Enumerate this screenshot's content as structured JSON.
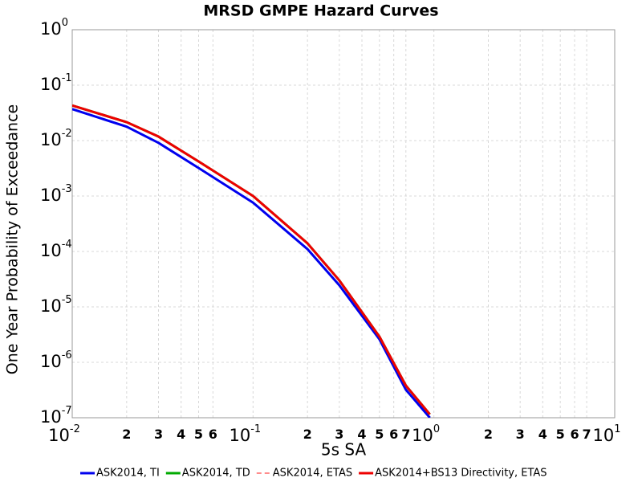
{
  "chart_data": {
    "type": "line",
    "title": "MRSD GMPE Hazard Curves",
    "x_label": "5s SA",
    "y_label": "One Year Probability of Exceedance",
    "x_scale": "log",
    "y_scale": "log",
    "grid": true,
    "xlim": [
      0.01,
      10
    ],
    "ylim": [
      1e-07,
      1
    ],
    "xticks": [
      {
        "value": 0.01,
        "label": "10",
        "exponent": "-2"
      },
      {
        "value": 0.02,
        "label": "2"
      },
      {
        "value": 0.03,
        "label": "3"
      },
      {
        "value": 0.04,
        "label": "4"
      },
      {
        "value": 0.05,
        "label": "5"
      },
      {
        "value": 0.06,
        "label": "6"
      },
      {
        "value": 0.1,
        "label": "10",
        "exponent": "-1"
      },
      {
        "value": 0.2,
        "label": "2"
      },
      {
        "value": 0.3,
        "label": "3"
      },
      {
        "value": 0.4,
        "label": "4"
      },
      {
        "value": 0.5,
        "label": "5"
      },
      {
        "value": 0.6,
        "label": "6"
      },
      {
        "value": 0.7,
        "label": "7"
      },
      {
        "value": 1,
        "label": "10",
        "exponent": "0"
      },
      {
        "value": 2,
        "label": "2"
      },
      {
        "value": 3,
        "label": "3"
      },
      {
        "value": 4,
        "label": "4"
      },
      {
        "value": 5,
        "label": "5"
      },
      {
        "value": 6,
        "label": "6"
      },
      {
        "value": 7,
        "label": "7"
      },
      {
        "value": 10,
        "label": "10",
        "exponent": "1"
      }
    ],
    "yticks": [
      {
        "value": 1e-07,
        "label": "10",
        "exponent": "-7"
      },
      {
        "value": 1e-06,
        "label": "10",
        "exponent": "-6"
      },
      {
        "value": 1e-05,
        "label": "10",
        "exponent": "-5"
      },
      {
        "value": 0.0001,
        "label": "10",
        "exponent": "-4"
      },
      {
        "value": 0.001,
        "label": "10",
        "exponent": "-3"
      },
      {
        "value": 0.01,
        "label": "10",
        "exponent": "-2"
      },
      {
        "value": 0.1,
        "label": "10",
        "exponent": "-1"
      },
      {
        "value": 1,
        "label": "10",
        "exponent": "0"
      }
    ],
    "x": [
      0.01,
      0.02,
      0.03,
      0.05,
      0.1,
      0.2,
      0.3,
      0.5,
      0.7,
      0.95
    ],
    "series": [
      {
        "name": "ASK2014, TI",
        "color": "#0000ee",
        "dash": false,
        "values": [
          0.037,
          0.0178,
          0.0091,
          0.0032,
          0.00076,
          0.00011,
          2.45e-05,
          2.6e-06,
          3.2e-07,
          1e-07
        ]
      },
      {
        "name": "ASK2014, TD",
        "color": "#00aa00",
        "dash": false,
        "values": [
          0.043,
          0.0215,
          0.0118,
          0.0042,
          0.001,
          0.00014,
          3e-05,
          2.9e-06,
          3.8e-07,
          1.15e-07
        ]
      },
      {
        "name": "ASK2014, ETAS",
        "color": "#ff6666",
        "dash": true,
        "values": [
          0.043,
          0.0215,
          0.0118,
          0.0042,
          0.001,
          0.00014,
          3e-05,
          2.9e-06,
          3.8e-07,
          1.15e-07
        ]
      },
      {
        "name": "ASK2014+BS13 Directivity, ETAS",
        "color": "#ee0000",
        "dash": false,
        "values": [
          0.043,
          0.0215,
          0.0118,
          0.0042,
          0.001,
          0.00014,
          3e-05,
          2.9e-06,
          3.8e-07,
          1.15e-07
        ]
      }
    ]
  }
}
